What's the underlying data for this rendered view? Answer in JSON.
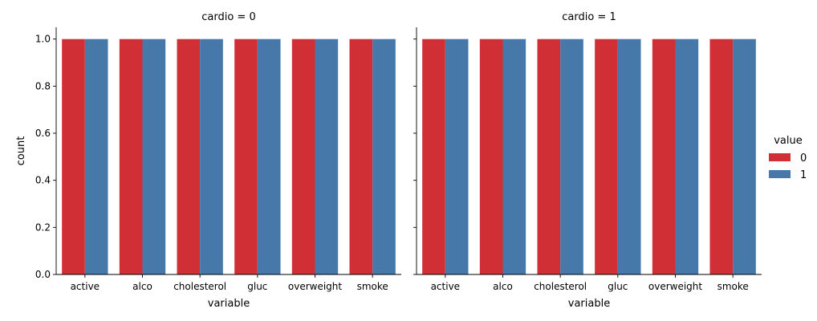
{
  "chart_data": {
    "type": "bar",
    "facet_variable": "cardio",
    "panels": [
      {
        "title": "cardio = 0",
        "categories": [
          "active",
          "alco",
          "cholesterol",
          "gluc",
          "overweight",
          "smoke"
        ],
        "series": [
          {
            "name": "0",
            "values": [
              1.0,
              1.0,
              1.0,
              1.0,
              1.0,
              1.0
            ]
          },
          {
            "name": "1",
            "values": [
              1.0,
              1.0,
              1.0,
              1.0,
              1.0,
              1.0
            ]
          }
        ]
      },
      {
        "title": "cardio = 1",
        "categories": [
          "active",
          "alco",
          "cholesterol",
          "gluc",
          "overweight",
          "smoke"
        ],
        "series": [
          {
            "name": "0",
            "values": [
              1.0,
              1.0,
              1.0,
              1.0,
              1.0,
              1.0
            ]
          },
          {
            "name": "1",
            "values": [
              1.0,
              1.0,
              1.0,
              1.0,
              1.0,
              1.0
            ]
          }
        ]
      }
    ],
    "xlabel": "variable",
    "ylabel": "count",
    "ylim": [
      0,
      1.05
    ],
    "yticks": [
      "0.0",
      "0.2",
      "0.4",
      "0.6",
      "0.8",
      "1.0"
    ],
    "legend": {
      "title": "value",
      "position": "right",
      "entries": [
        "0",
        "1"
      ]
    },
    "colors": {
      "0": "#d03035",
      "1": "#4679a9"
    },
    "grid": false,
    "sharey": true
  }
}
